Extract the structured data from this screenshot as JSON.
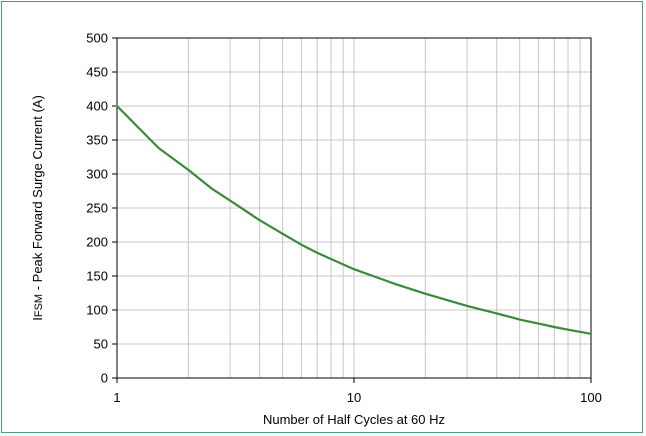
{
  "chart_data": {
    "type": "line",
    "title": "",
    "xlabel": "Number of Half Cycles at 60 Hz",
    "ylabel_main": "I",
    "ylabel_sub": "FSM",
    "ylabel_rest": " - Peak Forward Surge Current (A)",
    "xscale": "log",
    "xlim": [
      1,
      100
    ],
    "ylim": [
      0,
      500
    ],
    "yticks": [
      0,
      50,
      100,
      150,
      200,
      250,
      300,
      350,
      400,
      450,
      500
    ],
    "xticks": [
      1,
      10,
      100
    ],
    "grid": true,
    "line_color": "#3a8a3e",
    "series": [
      {
        "x": [
          1,
          1.5,
          2,
          2.5,
          3,
          4,
          5,
          6,
          7,
          8,
          10,
          15,
          20,
          30,
          40,
          50,
          60,
          70,
          80,
          100
        ],
        "y": [
          400,
          338,
          306,
          279,
          261,
          232,
          212,
          196,
          184,
          175,
          160,
          138,
          124,
          106,
          95,
          86,
          80,
          75,
          71,
          65
        ]
      }
    ]
  }
}
